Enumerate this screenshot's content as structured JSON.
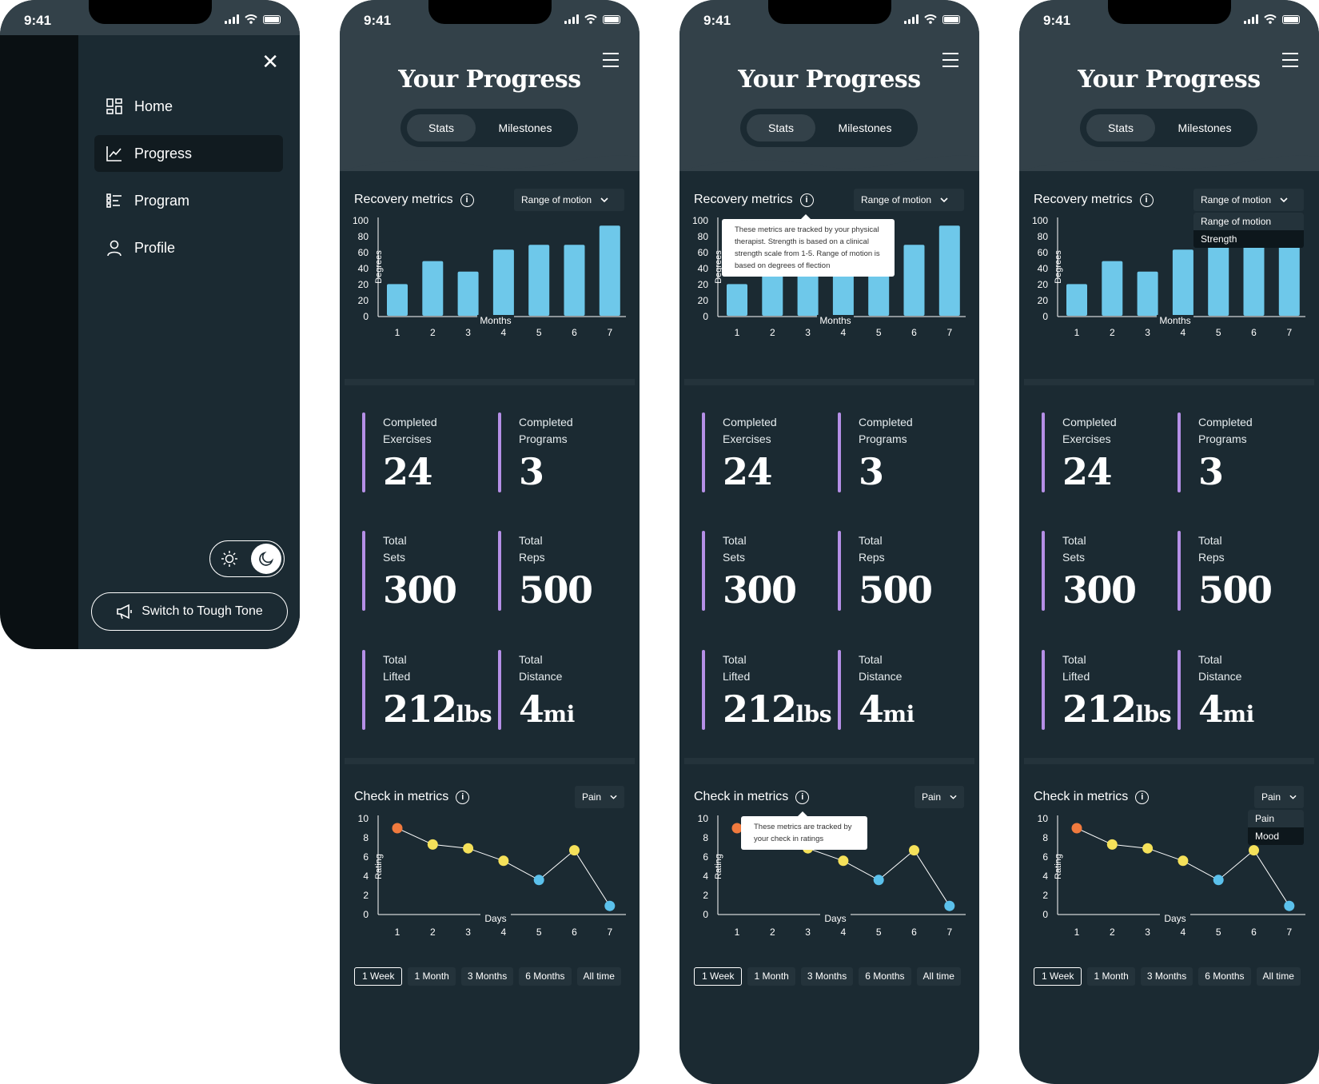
{
  "status": {
    "time": "9:41"
  },
  "menu": {
    "items": [
      {
        "label": "Home",
        "icon": "dashboard-icon",
        "active": false
      },
      {
        "label": "Progress",
        "icon": "chart-line-icon",
        "active": true
      },
      {
        "label": "Program",
        "icon": "list-icon",
        "active": false
      },
      {
        "label": "Profile",
        "icon": "user-icon",
        "active": false
      }
    ],
    "switch_button": "Switch to Tough Tone"
  },
  "page": {
    "title": "Your Progress",
    "tabs": [
      "Stats",
      "Milestones"
    ]
  },
  "recovery": {
    "title": "Recovery metrics",
    "dropdown_value": "Range of motion",
    "dropdown_options": [
      "Range of motion",
      "Strength"
    ],
    "tooltip": "These metrics are tracked by your physical therapist. Strength is based on a clinical strength scale from 1-5. Range of motion is based on degrees of flection"
  },
  "stats": [
    {
      "label1": "Completed",
      "label2": "Exercises",
      "value": "24",
      "unit": ""
    },
    {
      "label1": "Completed",
      "label2": "Programs",
      "value": "3",
      "unit": ""
    },
    {
      "label1": "Total",
      "label2": "Sets",
      "value": "300",
      "unit": ""
    },
    {
      "label1": "Total",
      "label2": "Reps",
      "value": "500",
      "unit": ""
    },
    {
      "label1": "Total",
      "label2": "Lifted",
      "value": "212",
      "unit": "lbs"
    },
    {
      "label1": "Total",
      "label2": "Distance",
      "value": "4",
      "unit": "mi"
    }
  ],
  "checkin": {
    "title": "Check in metrics",
    "dropdown_value": "Pain",
    "dropdown_options": [
      "Pain",
      "Mood"
    ],
    "tooltip": "These metrics are tracked by your check in ratings",
    "periods": [
      "1 Week",
      "1 Month",
      "3 Months",
      "6 Months",
      "All time"
    ]
  },
  "colors": {
    "bar": "#6ec8ea",
    "accent": "#b58fe6",
    "point_high": "#f07a3e",
    "point_mid": "#f5e15a",
    "point_low": "#5bc1ec"
  },
  "chart_data": [
    {
      "type": "bar",
      "title": "",
      "xlabel": "Months",
      "ylabel": "Degrees",
      "categories": [
        "1",
        "2",
        "3",
        "4",
        "5",
        "6",
        "7"
      ],
      "values": [
        33,
        57,
        46,
        69,
        74,
        74,
        94
      ],
      "y_tick_labels": [
        "0",
        "20",
        "20",
        "40",
        "60",
        "80",
        "100"
      ]
    },
    {
      "type": "line",
      "title": "",
      "xlabel": "Days",
      "ylabel": "Rating",
      "x": [
        "1",
        "2",
        "3",
        "4",
        "5",
        "6",
        "7"
      ],
      "values": [
        9,
        7.3,
        6.9,
        5.6,
        3.6,
        6.7,
        0.9
      ],
      "y_tick_labels": [
        "0",
        "2",
        "4",
        "6",
        "8",
        "10"
      ],
      "ylim": [
        0,
        10
      ]
    }
  ]
}
